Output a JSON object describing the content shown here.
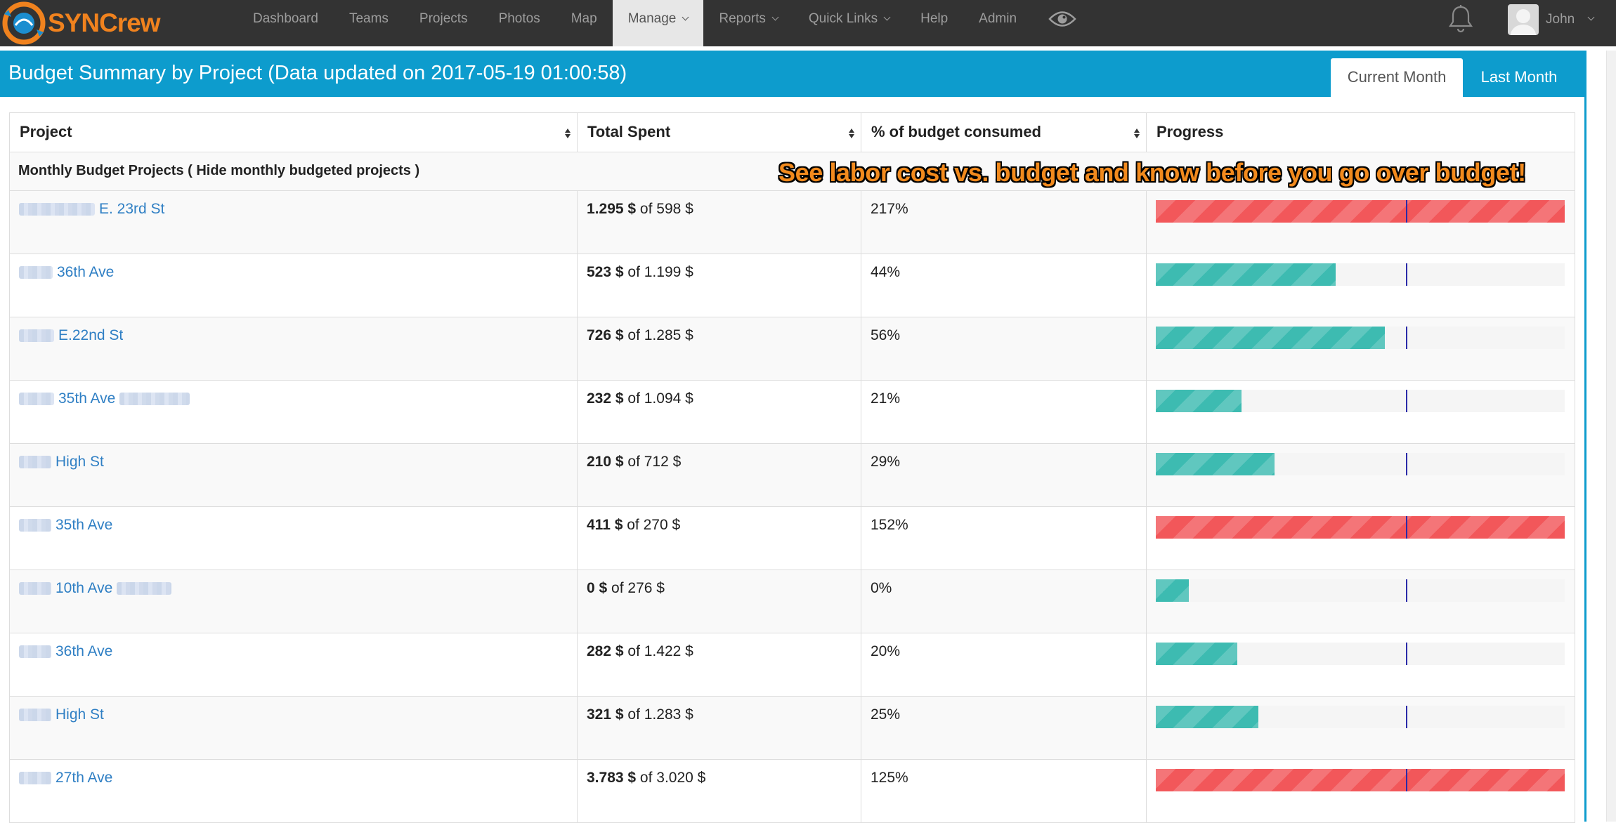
{
  "brand": {
    "name": "SYNCrew",
    "accent": "#f0821e"
  },
  "nav": {
    "items": [
      {
        "label": "Dashboard",
        "caret": false,
        "active": false
      },
      {
        "label": "Teams",
        "caret": false,
        "active": false
      },
      {
        "label": "Projects",
        "caret": false,
        "active": false
      },
      {
        "label": "Photos",
        "caret": false,
        "active": false
      },
      {
        "label": "Map",
        "caret": false,
        "active": false
      },
      {
        "label": "Manage",
        "caret": true,
        "active": true
      },
      {
        "label": "Reports",
        "caret": true,
        "active": false
      },
      {
        "label": "Quick Links",
        "caret": true,
        "active": false
      },
      {
        "label": "Help",
        "caret": false,
        "active": false
      },
      {
        "label": "Admin",
        "caret": false,
        "active": false
      }
    ],
    "icons": [
      "eye-icon",
      "bell-icon"
    ],
    "user": {
      "name": "John"
    }
  },
  "panel": {
    "title": "Budget Summary by Project (Data updated on 2017-05-19 01:00:58)",
    "tabs": {
      "current": "Current Month",
      "last": "Last Month"
    },
    "color": "#0d9ccd"
  },
  "table": {
    "headers": {
      "project": "Project",
      "spent": "Total Spent",
      "pct": "% of budget consumed",
      "progress": "Progress"
    },
    "group_label": "Monthly Budget Projects ( Hide monthly budgeted projects )",
    "callout": "See labor cost vs. budget and know before you go over budget!",
    "rows": [
      {
        "project": "E. 23rd St",
        "spent": "1.295 $",
        "budget": "of 598 $",
        "pct": "217%",
        "fill": 1.0,
        "status": "over"
      },
      {
        "project": "36th Ave",
        "spent": "523 $",
        "budget": "of 1.199 $",
        "pct": "44%",
        "fill": 0.44,
        "status": "ok"
      },
      {
        "project": "E.22nd St",
        "spent": "726 $",
        "budget": "of 1.285 $",
        "pct": "56%",
        "fill": 0.56,
        "status": "ok"
      },
      {
        "project": "35th Ave",
        "spent": "232 $",
        "budget": "of 1.094 $",
        "pct": "21%",
        "fill": 0.21,
        "status": "ok"
      },
      {
        "project": "High St",
        "spent": "210 $",
        "budget": "of 712 $",
        "pct": "29%",
        "fill": 0.29,
        "status": "ok"
      },
      {
        "project": "35th Ave",
        "spent": "411 $",
        "budget": "of 270 $",
        "pct": "152%",
        "fill": 1.0,
        "status": "over"
      },
      {
        "project": "10th Ave",
        "spent": "0 $",
        "budget": "of 276 $",
        "pct": "0%",
        "fill": 0.08,
        "status": "ok"
      },
      {
        "project": "36th Ave",
        "spent": "282 $",
        "budget": "of 1.422 $",
        "pct": "20%",
        "fill": 0.2,
        "status": "ok"
      },
      {
        "project": "High St",
        "spent": "321 $",
        "budget": "of 1.283 $",
        "pct": "25%",
        "fill": 0.25,
        "status": "ok"
      },
      {
        "project": "27th Ave",
        "spent": "3.783 $",
        "budget": "of 3.020 $",
        "pct": "125%",
        "fill": 1.0,
        "status": "over"
      }
    ]
  },
  "colors": {
    "ok": "#3dbbb1",
    "over": "#f2575a",
    "marker": "#2a2aa8"
  }
}
